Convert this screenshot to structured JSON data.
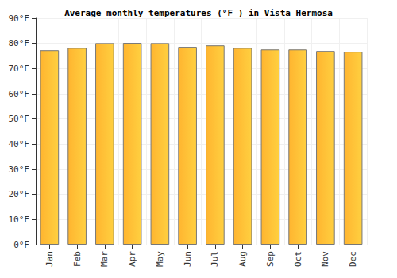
{
  "chart_data": {
    "type": "bar",
    "title": "Average monthly temperatures (°F ) in Vista Hermosa",
    "categories": [
      "Jan",
      "Feb",
      "Mar",
      "Apr",
      "May",
      "Jun",
      "Jul",
      "Aug",
      "Sep",
      "Oct",
      "Nov",
      "Dec"
    ],
    "values": [
      77.3,
      78.2,
      80.1,
      80.2,
      80.1,
      78.6,
      79.2,
      78.2,
      77.6,
      77.6,
      77.0,
      76.7
    ],
    "color": "#ffb530",
    "ylim": [
      0,
      90
    ],
    "yticks": [
      {
        "value": 0,
        "label": "0°F"
      },
      {
        "value": 10,
        "label": "10°F"
      },
      {
        "value": 20,
        "label": "20°F"
      },
      {
        "value": 30,
        "label": "30°F"
      },
      {
        "value": 40,
        "label": "40°F"
      },
      {
        "value": 50,
        "label": "50°F"
      },
      {
        "value": 60,
        "label": "60°F"
      },
      {
        "value": 70,
        "label": "70°F"
      },
      {
        "value": 80,
        "label": "80°F"
      },
      {
        "value": 90,
        "label": "90°F"
      }
    ],
    "grid": true
  }
}
